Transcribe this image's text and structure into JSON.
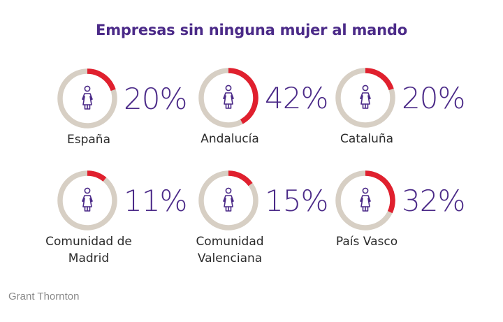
{
  "chart_data": {
    "type": "pie",
    "subtype": "donut-grid",
    "title": "Empresas sin ninguna mujer al mando",
    "unit": "%",
    "icon": "woman-icon",
    "colors": {
      "highlight": "#e0202e",
      "track": "#d7cfc4",
      "value_text": "#4b2a88",
      "title": "#4b2a88",
      "label": "#2b2b2b"
    },
    "items": [
      {
        "region": "España",
        "label_lines": [
          "España"
        ],
        "value": 20,
        "display": "20%"
      },
      {
        "region": "Andalucía",
        "label_lines": [
          "Andalucía"
        ],
        "value": 42,
        "display": "42%"
      },
      {
        "region": "Cataluña",
        "label_lines": [
          "Cataluña"
        ],
        "value": 20,
        "display": "20%"
      },
      {
        "region": "Comunidad de Madrid",
        "label_lines": [
          "Comunidad de",
          "Madrid"
        ],
        "value": 11,
        "display": "11%"
      },
      {
        "region": "Comunidad Valenciana",
        "label_lines": [
          "Comunidad",
          "Valenciana"
        ],
        "value": 15,
        "display": "15%"
      },
      {
        "region": "País Vasco",
        "label_lines": [
          "País Vasco"
        ],
        "value": 32,
        "display": "32%"
      }
    ]
  },
  "source": "Grant Thornton"
}
